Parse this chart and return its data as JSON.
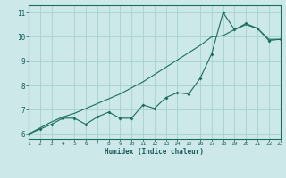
{
  "title": "",
  "xlabel": "Humidex (Indice chaleur)",
  "ylabel": "",
  "background_color": "#cce8e8",
  "grid_color": "#aad4d4",
  "line_color": "#1a6e5a",
  "xlim": [
    1,
    23
  ],
  "ylim": [
    5.8,
    11.3
  ],
  "xticks": [
    1,
    2,
    3,
    4,
    5,
    6,
    7,
    8,
    9,
    10,
    11,
    12,
    13,
    14,
    15,
    16,
    17,
    18,
    19,
    20,
    21,
    22,
    23
  ],
  "yticks": [
    6,
    7,
    8,
    9,
    10,
    11
  ],
  "curve1_x": [
    1,
    2,
    3,
    4,
    5,
    6,
    7,
    8,
    9,
    10,
    11,
    12,
    13,
    14,
    15,
    16,
    17,
    18,
    19,
    20,
    21,
    22,
    23
  ],
  "curve1_y": [
    6.0,
    6.2,
    6.4,
    6.65,
    6.65,
    6.4,
    6.7,
    6.9,
    6.65,
    6.65,
    7.2,
    7.05,
    7.5,
    7.7,
    7.65,
    8.3,
    9.3,
    11.0,
    10.3,
    10.55,
    10.35,
    9.85,
    9.9
  ],
  "curve2_x": [
    1,
    2,
    3,
    4,
    5,
    6,
    7,
    8,
    9,
    10,
    11,
    12,
    13,
    14,
    15,
    16,
    17,
    18,
    19,
    20,
    21,
    22,
    23
  ],
  "curve2_y": [
    6.0,
    6.25,
    6.5,
    6.7,
    6.85,
    7.05,
    7.25,
    7.45,
    7.65,
    7.9,
    8.15,
    8.45,
    8.75,
    9.05,
    9.35,
    9.65,
    10.0,
    10.05,
    10.3,
    10.5,
    10.35,
    9.9,
    9.9
  ]
}
